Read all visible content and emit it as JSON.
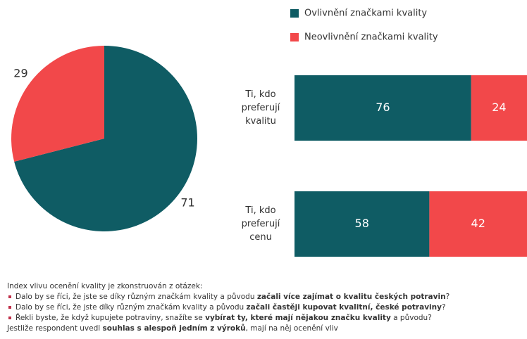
{
  "chart_data": [
    {
      "type": "pie",
      "values": [
        71,
        29
      ],
      "colors": [
        "#0f5c64",
        "#f2484a"
      ]
    },
    {
      "type": "stacked_bar_h",
      "categories": [
        "Ti, kdo preferují kvalitu",
        "Ti, kdo preferují cenu"
      ],
      "series": [
        {
          "name": "Ovlivnění značkami kvality",
          "color": "#0f5c64",
          "values": [
            76,
            58
          ]
        },
        {
          "name": "Neovlivnění značkami kvality",
          "color": "#f2484a",
          "values": [
            24,
            42
          ]
        }
      ],
      "legend": "top"
    }
  ],
  "notes": {
    "intro": "Index vlivu ocenění kvality je zkonstruován z otázek:",
    "items": [
      [
        "Dalo by se říci, že jste se díky různým značkám kvality a původu ",
        "začali více zajímat o kvalitu českých potravin",
        "?"
      ],
      [
        "Dalo by se říci, že jste díky různým značkám kvality a původu ",
        "začali častěji kupovat kvalitní, české potraviny",
        "?"
      ],
      [
        "Řekli byste, že když kupujete potraviny, snažíte se ",
        "vybírat ty, které mají nějakou značku kvality",
        " a původu?"
      ]
    ],
    "outro": [
      "Jestliže respondent uvedl ",
      "souhlas s alespoň jedním z výroků",
      ", mají na něj ocenění vliv"
    ]
  }
}
